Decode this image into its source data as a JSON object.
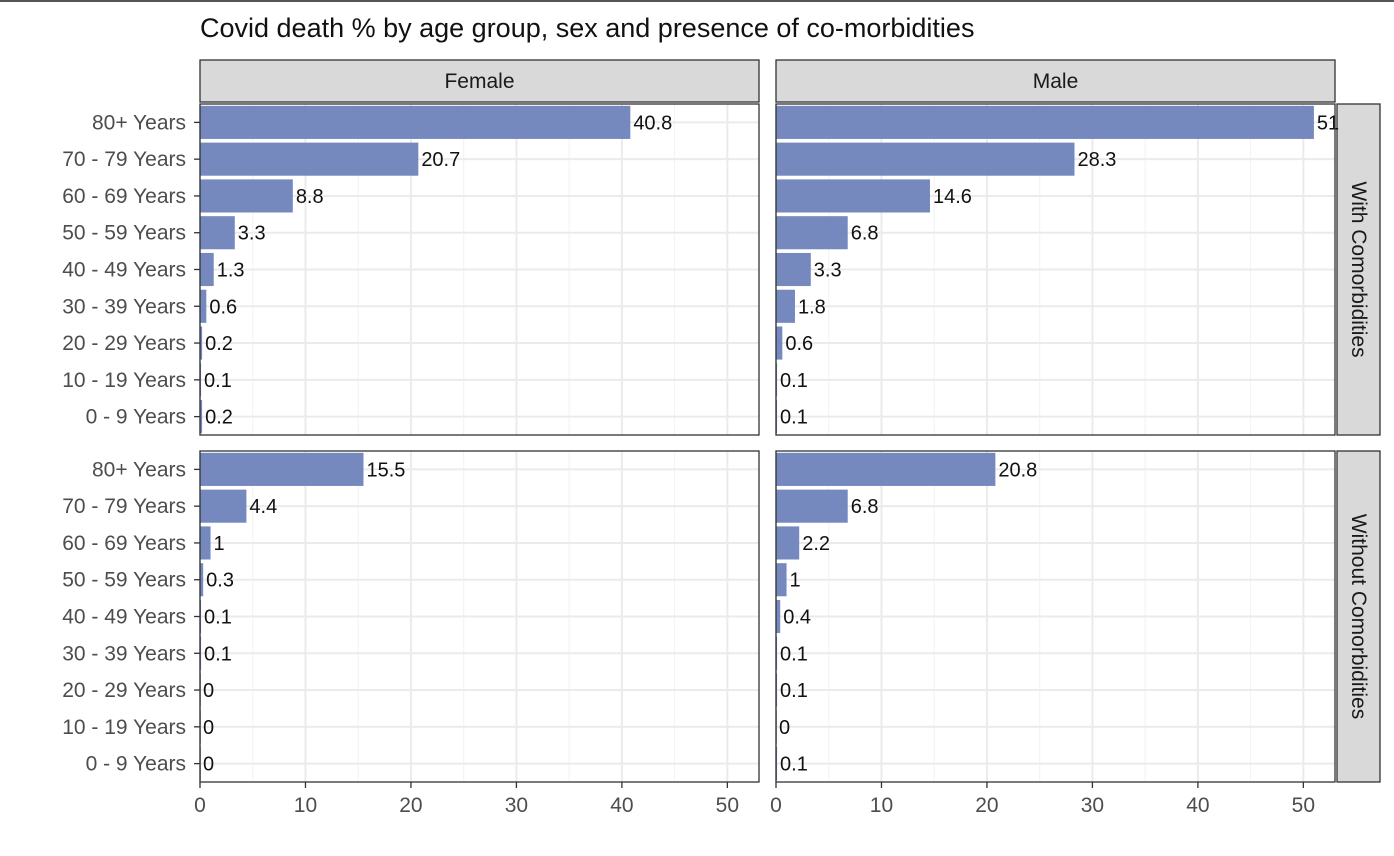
{
  "chart_data": {
    "type": "bar",
    "orientation": "horizontal",
    "title": "Covid death % by age group, sex and presence of co-morbidities",
    "xlabel": "",
    "ylabel": "",
    "xlim": [
      0,
      53
    ],
    "x_ticks": [
      0,
      10,
      20,
      30,
      40,
      50
    ],
    "grid": true,
    "bar_color": "#6A7FB8",
    "facet_cols": [
      "Female",
      "Male"
    ],
    "facet_rows": [
      "With Comorbidities",
      "Without Comorbidities"
    ],
    "categories": [
      "80+ Years",
      "70 - 79 Years",
      "60 - 69 Years",
      "50 - 59 Years",
      "40 - 49 Years",
      "30 - 39 Years",
      "20 - 29 Years",
      "10 - 19 Years",
      "0 - 9 Years"
    ],
    "panels": [
      {
        "row": "With Comorbidities",
        "col": "Female",
        "values": [
          40.8,
          20.7,
          8.8,
          3.3,
          1.3,
          0.6,
          0.2,
          0.1,
          0.2
        ],
        "labels": [
          "40.8",
          "20.7",
          "8.8",
          "3.3",
          "1.3",
          "0.6",
          "0.2",
          "0.1",
          "0.2"
        ]
      },
      {
        "row": "With Comorbidities",
        "col": "Male",
        "values": [
          51,
          28.3,
          14.6,
          6.8,
          3.3,
          1.8,
          0.6,
          0.1,
          0.1
        ],
        "labels": [
          "51",
          "28.3",
          "14.6",
          "6.8",
          "3.3",
          "1.8",
          "0.6",
          "0.1",
          "0.1"
        ]
      },
      {
        "row": "Without Comorbidities",
        "col": "Female",
        "values": [
          15.5,
          4.4,
          1,
          0.3,
          0.1,
          0.1,
          0,
          0,
          0
        ],
        "labels": [
          "15.5",
          "4.4",
          "1",
          "0.3",
          "0.1",
          "0.1",
          "0",
          "0",
          "0"
        ]
      },
      {
        "row": "Without Comorbidities",
        "col": "Male",
        "values": [
          20.8,
          6.8,
          2.2,
          1,
          0.4,
          0.1,
          0.1,
          0,
          0.1
        ],
        "labels": [
          "20.8",
          "6.8",
          "2.2",
          "1",
          "0.4",
          "0.1",
          "0.1",
          "0",
          "0.1"
        ]
      }
    ]
  }
}
